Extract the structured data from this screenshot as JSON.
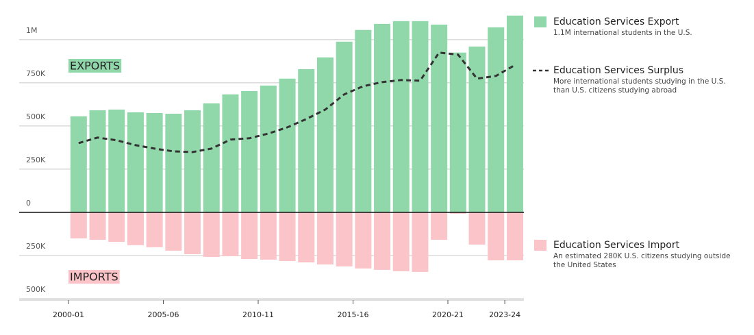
{
  "chart_data": {
    "type": "bar",
    "categories": [
      "2000-01",
      null,
      null,
      null,
      null,
      "2005-06",
      null,
      null,
      null,
      null,
      "2010-11",
      null,
      null,
      null,
      null,
      "2015-16",
      null,
      null,
      null,
      null,
      "2020-21",
      null,
      null,
      "2023-24"
    ],
    "series": [
      {
        "name": "Education Services Export",
        "type": "bar",
        "color": "#90d7aa",
        "description": [
          "1.1M international students in the U.S."
        ],
        "values": [
          556000,
          591000,
          595000,
          579000,
          575000,
          571000,
          591000,
          631000,
          683000,
          702000,
          734000,
          774000,
          829000,
          897000,
          988000,
          1056000,
          1091000,
          1107000,
          1107000,
          1087000,
          925000,
          960000,
          1071000,
          1139000
        ]
      },
      {
        "name": "Education Services Surplus",
        "type": "line",
        "color": "#333333",
        "description": [
          "More international students studying in the U.S.",
          "than U.S. citizens studying abroad"
        ],
        "values": [
          401000,
          433000,
          417000,
          389000,
          369000,
          353000,
          349000,
          369000,
          421000,
          429000,
          456000,
          492000,
          540000,
          595000,
          683000,
          730000,
          754000,
          766000,
          762000,
          925000,
          913000,
          774000,
          790000,
          853000
        ]
      },
      {
        "name": "Education Services Import",
        "type": "bar",
        "color": "#fbc4c8",
        "description": [
          "An estimated 280K U.S. citizens studying outside",
          "the United States"
        ],
        "values": [
          -151000,
          -159000,
          -171000,
          -190000,
          -202000,
          -222000,
          -242000,
          -258000,
          -254000,
          -270000,
          -274000,
          -282000,
          -290000,
          -302000,
          -313000,
          -325000,
          -333000,
          -341000,
          -345000,
          -159000,
          -8000,
          -187000,
          -278000,
          -278000
        ]
      }
    ],
    "annotations": [
      {
        "text": "EXPORTS",
        "color": "#90d7aa"
      },
      {
        "text": "IMPORTS",
        "color": "#fbc4c8"
      }
    ],
    "ylim": [
      -500000,
      1150000
    ],
    "yticks": [
      {
        "value": -500000,
        "label": "500K"
      },
      {
        "value": -250000,
        "label": "250K"
      },
      0,
      {
        "value": 250000,
        "label": "250K"
      },
      {
        "value": 500000,
        "label": "500K"
      },
      {
        "value": 750000,
        "label": "750K"
      },
      {
        "value": 1000000,
        "label": "1M"
      }
    ],
    "grid": true
  }
}
